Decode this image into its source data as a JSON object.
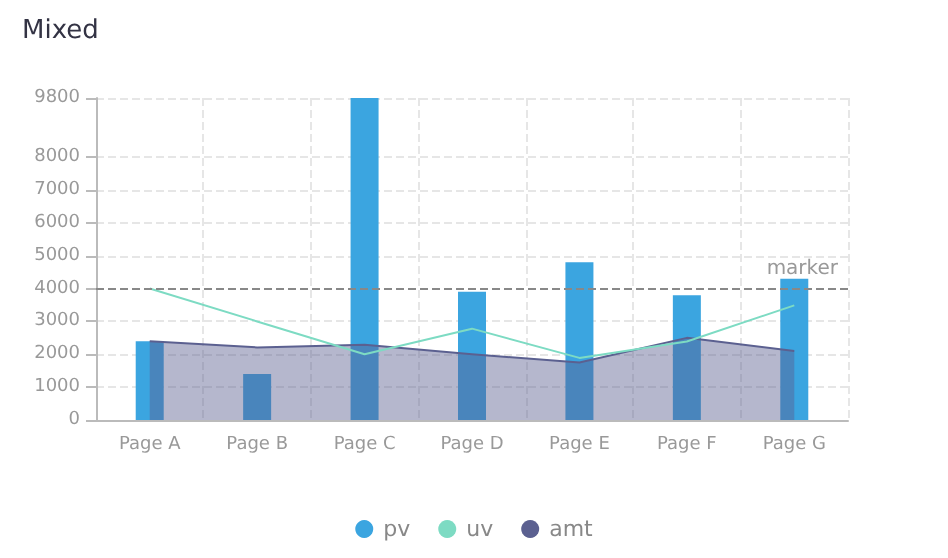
{
  "chart_data": {
    "type": "bar",
    "title": "Mixed",
    "categories": [
      "Page A",
      "Page B",
      "Page C",
      "Page D",
      "Page E",
      "Page F",
      "Page G"
    ],
    "series": [
      {
        "name": "pv",
        "color": "#3ba5e0",
        "values": [
          2400,
          1400,
          9800,
          3900,
          4800,
          3800,
          4300
        ]
      },
      {
        "name": "uv",
        "type": "line",
        "color": "#7ddbc3",
        "values": [
          4000,
          3000,
          2000,
          2780,
          1890,
          2390,
          3490
        ]
      },
      {
        "name": "amt",
        "type": "area",
        "color": "#5b6090",
        "values": [
          2400,
          2210,
          2290,
          2000,
          1750,
          2500,
          2100
        ]
      }
    ],
    "ylim": [
      0,
      9800
    ],
    "yticks": [
      0,
      1000,
      2000,
      3000,
      4000,
      5000,
      6000,
      7000,
      8000,
      9800
    ],
    "ref_lines": [
      {
        "axis": "y",
        "value": 4000,
        "label": "marker",
        "line_style": "dashed"
      }
    ],
    "grid": true,
    "legend": "bottom",
    "marker": "none"
  }
}
